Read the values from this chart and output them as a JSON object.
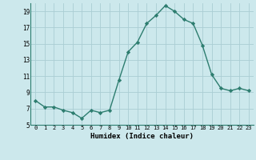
{
  "x": [
    0,
    1,
    2,
    3,
    4,
    5,
    6,
    7,
    8,
    9,
    10,
    11,
    12,
    13,
    14,
    15,
    16,
    17,
    18,
    19,
    20,
    21,
    22,
    23
  ],
  "y": [
    8.0,
    7.2,
    7.2,
    6.8,
    6.5,
    5.8,
    6.8,
    6.5,
    6.8,
    10.5,
    14.0,
    15.2,
    17.5,
    18.5,
    19.7,
    19.0,
    18.0,
    17.5,
    14.8,
    11.2,
    9.5,
    9.2,
    9.5,
    9.2
  ],
  "line_color": "#2d7d6f",
  "marker": "D",
  "marker_size": 2.2,
  "bg_color": "#cce8ec",
  "grid_color": "#aacdd4",
  "xlabel": "Humidex (Indice chaleur)",
  "ylim": [
    5,
    20
  ],
  "xlim": [
    -0.5,
    23.5
  ],
  "yticks": [
    5,
    7,
    9,
    11,
    13,
    15,
    17,
    19
  ],
  "xticks": [
    0,
    1,
    2,
    3,
    4,
    5,
    6,
    7,
    8,
    9,
    10,
    11,
    12,
    13,
    14,
    15,
    16,
    17,
    18,
    19,
    20,
    21,
    22,
    23
  ]
}
